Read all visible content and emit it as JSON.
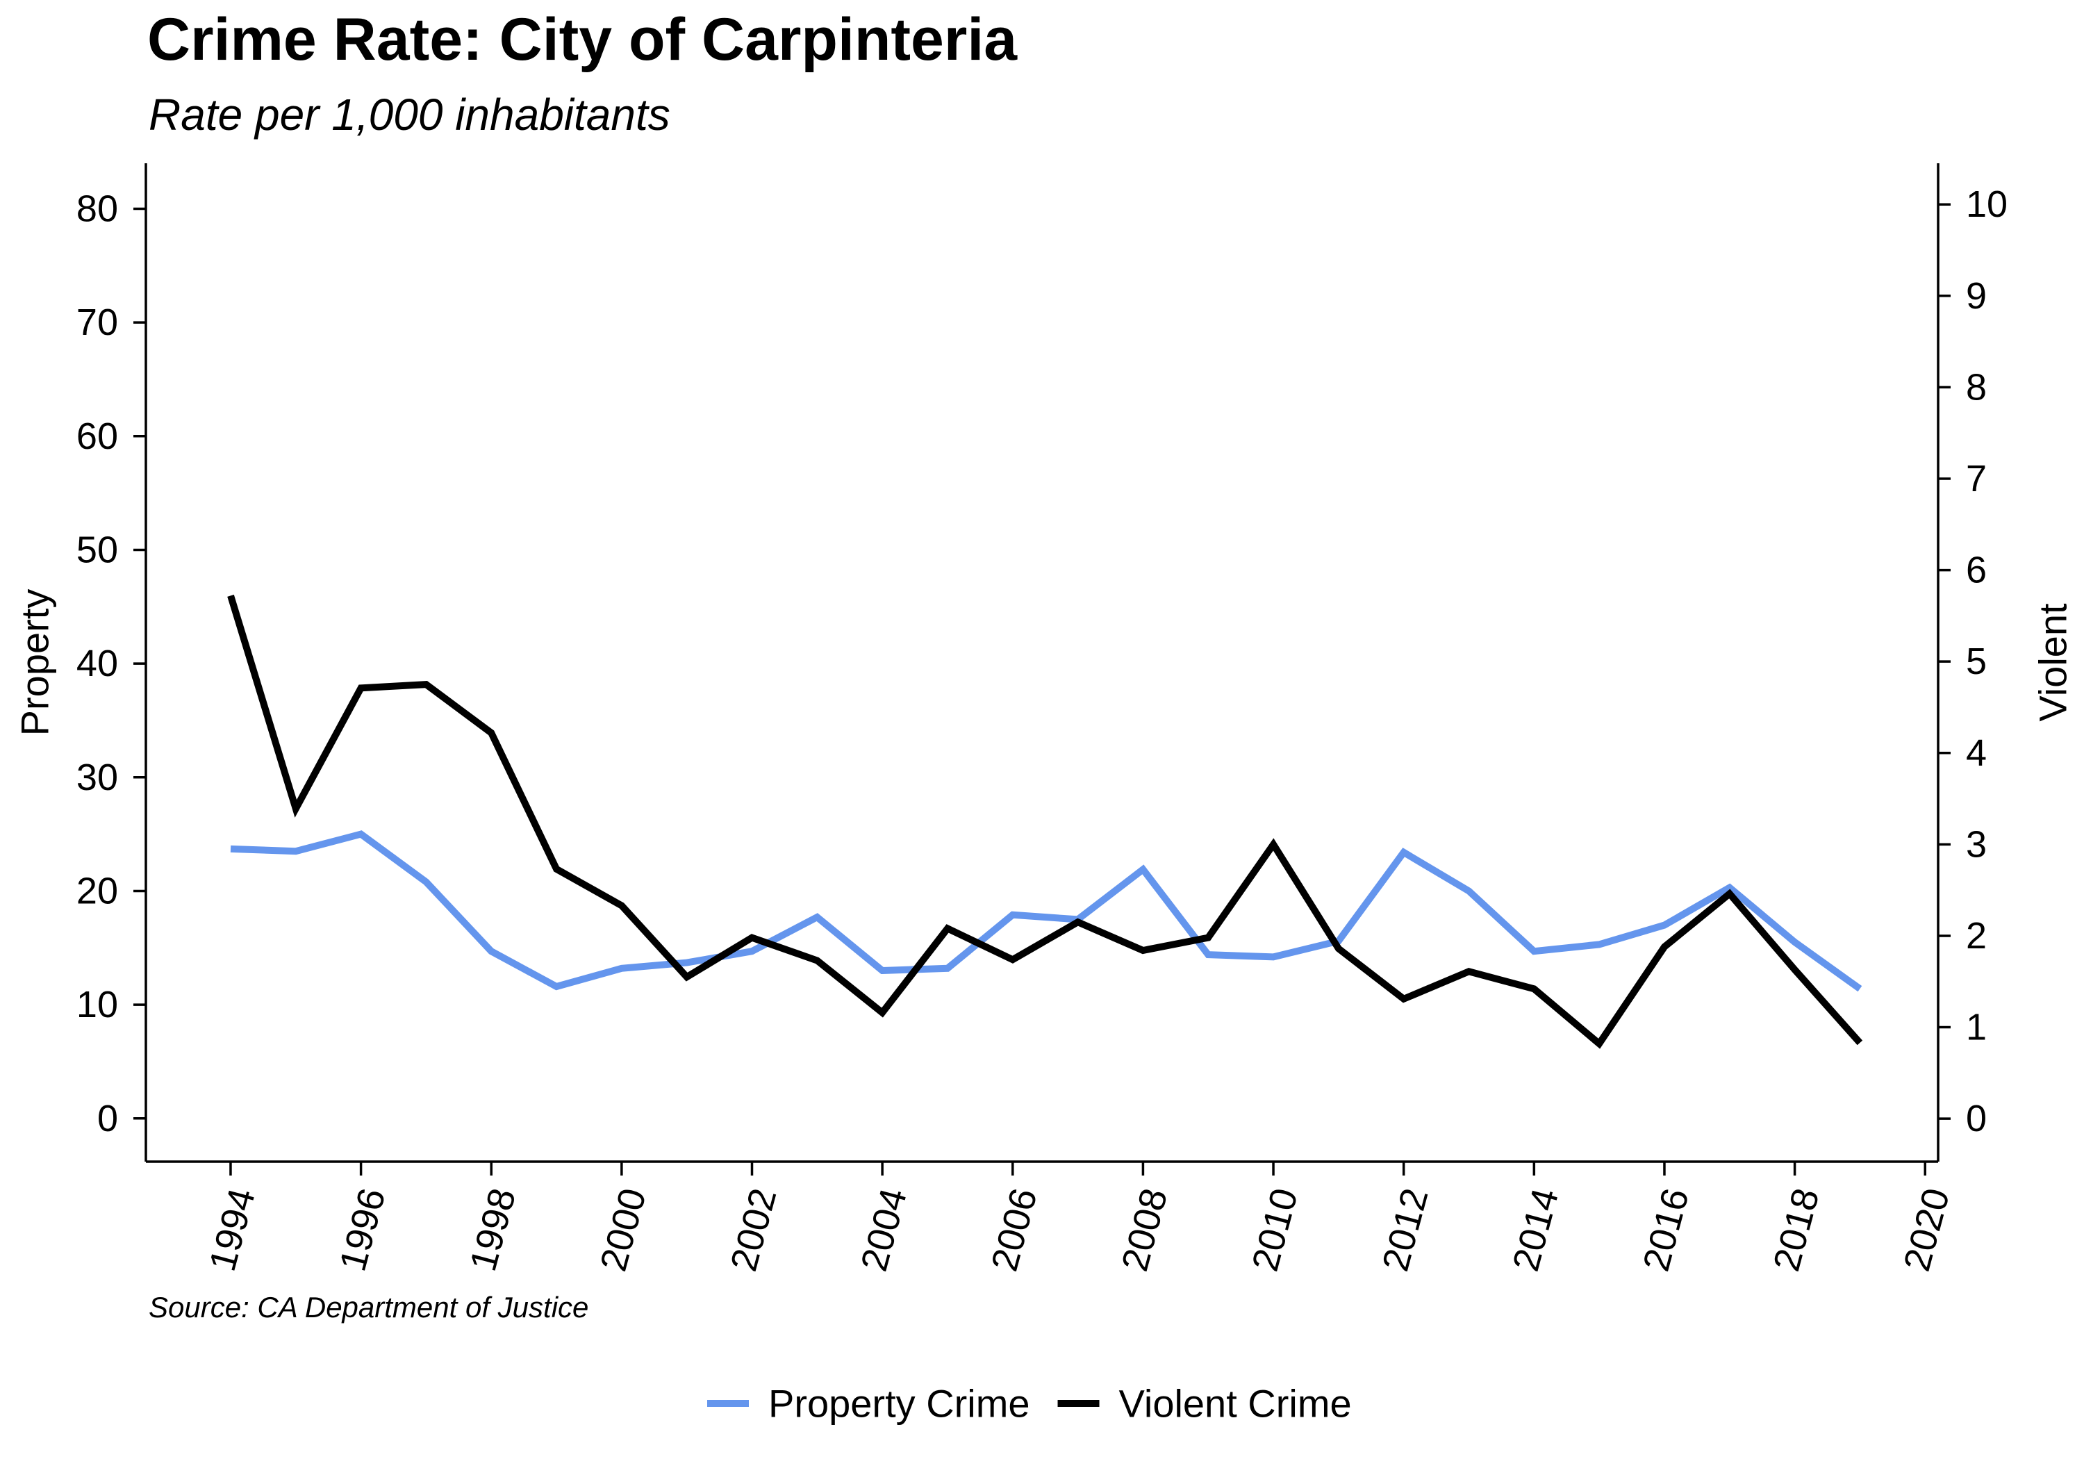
{
  "chart_data": {
    "type": "line",
    "title": "Crime Rate: City of Carpinteria",
    "subtitle": "Rate per 1,000 inhabitants",
    "source": "Source: CA Department of Justice",
    "y_left_label": "Property",
    "y_right_label": "Violent",
    "y_left_lim": [
      -3.8,
      84
    ],
    "y_right_lim": [
      -0.47,
      10.45
    ],
    "y_left_ticks": [
      0,
      10,
      20,
      30,
      40,
      50,
      60,
      70,
      80
    ],
    "y_right_ticks": [
      0,
      1,
      2,
      3,
      4,
      5,
      6,
      7,
      8,
      9,
      10
    ],
    "x_lim": [
      1992.7,
      2020.2
    ],
    "x_ticks": [
      1994,
      1996,
      1998,
      2000,
      2002,
      2004,
      2006,
      2008,
      2010,
      2012,
      2014,
      2016,
      2018,
      2020
    ],
    "x": [
      1994,
      1995,
      1996,
      1997,
      1998,
      1999,
      2000,
      2001,
      2002,
      2003,
      2004,
      2005,
      2006,
      2007,
      2008,
      2009,
      2010,
      2011,
      2012,
      2013,
      2014,
      2015,
      2016,
      2017,
      2018,
      2019
    ],
    "series": [
      {
        "name": "Property Crime",
        "axis": "left",
        "color": "#6495ED",
        "values": [
          23.7,
          23.5,
          25.0,
          20.8,
          14.7,
          11.6,
          13.2,
          13.7,
          14.7,
          17.7,
          13.0,
          13.2,
          17.9,
          17.5,
          21.9,
          14.4,
          14.2,
          15.6,
          23.4,
          20.0,
          14.7,
          15.3,
          17.0,
          20.3,
          15.5,
          11.4
        ]
      },
      {
        "name": "Violent Crime",
        "axis": "right",
        "color": "#000000",
        "values": [
          5.72,
          3.39,
          4.71,
          4.75,
          4.22,
          2.73,
          2.33,
          1.55,
          1.98,
          1.73,
          1.16,
          2.08,
          1.74,
          2.15,
          1.84,
          1.98,
          3.0,
          1.86,
          1.31,
          1.61,
          1.42,
          0.82,
          1.88,
          2.46,
          1.63,
          0.83
        ]
      }
    ],
    "grid": false,
    "legend_position": "bottom"
  }
}
